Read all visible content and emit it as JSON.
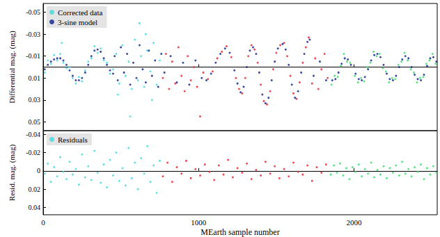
{
  "chart_data": [
    {
      "type": "scatter",
      "y_label": "Differential mag. (mag)",
      "xlim": [
        0,
        2535
      ],
      "xticks": [
        0,
        1000,
        2000
      ],
      "ylim": [
        0.058,
        -0.058
      ],
      "yticks": [
        -0.05,
        -0.03,
        -0.01,
        0.01,
        0.03,
        0.05
      ],
      "grid": false,
      "legend": "upper left",
      "tick_labels": "y",
      "marker": "circle",
      "series": [
        {
          "name": "Corrected data",
          "color": "#3fd9e0",
          "x": [
            10,
            30,
            50,
            70,
            90,
            110,
            120,
            130,
            150,
            170,
            190,
            210,
            230,
            250,
            270,
            290,
            310,
            330,
            350,
            370,
            390,
            410,
            430,
            450,
            470,
            480,
            490,
            510,
            530,
            550,
            560,
            570,
            590,
            610,
            620,
            630,
            650,
            660,
            670,
            690,
            700,
            710,
            730,
            750
          ],
          "values": [
            0.005,
            -0.006,
            -0.003,
            -0.011,
            -0.006,
            -0.012,
            -0.022,
            -0.004,
            0.001,
            0,
            0.01,
            0.015,
            0.009,
            0.013,
            0.003,
            -0.005,
            -0.008,
            -0.019,
            -0.013,
            -0.017,
            -0.006,
            -0.004,
            0.006,
            0.002,
            -0.012,
            0.025,
            0.015,
            -0.02,
            0.008,
            -0.005,
            0.045,
            0.02,
            -0.025,
            0.012,
            -0.04,
            -0.01,
            0.018,
            -0.03,
            -0.015,
            0.004,
            0.03,
            -0.022,
            0.016,
            -0.006
          ]
        },
        {
          "color": "#e8232a",
          "x": [
            770,
            790,
            810,
            830,
            850,
            870,
            890,
            910,
            930,
            950,
            970,
            990,
            1010,
            1030,
            1060,
            1090,
            1120,
            1150,
            1180,
            1210,
            1240,
            1260,
            1280,
            1300,
            1320,
            1340,
            1360,
            1380,
            1400,
            1420,
            1440,
            1460,
            1480,
            1500,
            1525,
            1550,
            1570,
            1590,
            1610,
            1630,
            1650,
            1670,
            1690,
            1708,
            1730,
            1750,
            1770,
            1790,
            1810,
            1830
          ],
          "values": [
            0.01,
            -0.012,
            0.02,
            -0.005,
            0.015,
            -0.018,
            0.008,
            0.022,
            -0.01,
            0.012,
            0,
            0.018,
            0.045,
            0.005,
            0.011,
            0.004,
            -0.008,
            -0.014,
            -0.019,
            -0.009,
            0.01,
            0.02,
            0.024,
            0.01,
            -0.01,
            -0.02,
            -0.016,
            -0.004,
            0.016,
            0.031,
            0.034,
            0.022,
            0.002,
            -0.013,
            -0.02,
            -0.022,
            -0.01,
            0.008,
            0.024,
            0.029,
            0.014,
            -0.004,
            -0.018,
            -0.027,
            0.015,
            -0.008,
            0.02,
            0.002,
            -0.012,
            0.01
          ]
        },
        {
          "color": "#33dd66",
          "x": [
            1855,
            1875,
            1895,
            1915,
            1935,
            1955,
            1975,
            2005,
            2025,
            2045,
            2065,
            2085,
            2105,
            2125,
            2145,
            2165,
            2185,
            2205,
            2225,
            2245,
            2265,
            2285,
            2305,
            2325,
            2345,
            2365,
            2385,
            2405,
            2425,
            2445,
            2465,
            2485,
            2505,
            2525
          ],
          "values": [
            0.016,
            0.008,
            0.009,
            -0.001,
            -0.012,
            -0.005,
            -0.004,
            0.008,
            0.014,
            0.01,
            0.013,
            0,
            -0.004,
            -0.014,
            -0.01,
            -0.012,
            0.001,
            0.004,
            0.014,
            0.01,
            0.011,
            -0.002,
            -0.005,
            -0.013,
            -0.006,
            0.002,
            0.005,
            0.014,
            0.01,
            0.009,
            -0.003,
            -0.006,
            -0.012,
            -0.003
          ]
        },
        {
          "name": "3-sine model",
          "color": "#0d1f8f",
          "x": [
            10,
            30,
            50,
            70,
            90,
            110,
            130,
            150,
            170,
            190,
            210,
            230,
            250,
            270,
            290,
            310,
            330,
            350,
            370,
            390,
            410,
            430,
            450,
            460,
            480,
            500,
            520,
            540,
            560,
            580,
            600,
            620,
            640,
            660,
            680,
            700,
            720,
            740,
            760,
            780,
            820,
            860,
            900,
            940,
            980,
            1020,
            1050,
            1080,
            1110,
            1140,
            1170,
            1200,
            1230,
            1250,
            1270,
            1290,
            1310,
            1330,
            1350,
            1370,
            1390,
            1410,
            1430,
            1450,
            1470,
            1490,
            1510,
            1540,
            1560,
            1580,
            1600,
            1620,
            1640,
            1660,
            1680,
            1700,
            1715,
            1740,
            1780,
            1820,
            1860,
            1880,
            1900,
            1920,
            1940,
            1960,
            1980,
            2010,
            2030,
            2050,
            2070,
            2090,
            2110,
            2130,
            2150,
            2170,
            2190,
            2210,
            2230,
            2250,
            2270,
            2290,
            2310,
            2330,
            2350,
            2370,
            2390,
            2410,
            2430,
            2450,
            2470,
            2490,
            2510,
            2530
          ],
          "values": [
            0.002,
            -0.002,
            -0.005,
            -0.007,
            -0.008,
            -0.008,
            -0.006,
            -0.002,
            0.003,
            0.008,
            0.012,
            0.012,
            0.01,
            0.005,
            -0.002,
            -0.01,
            -0.015,
            -0.016,
            -0.014,
            -0.008,
            -0.002,
            0.003,
            0.006,
            -0.01,
            0.012,
            -0.018,
            0.005,
            -0.012,
            0.016,
            -0.004,
            0.01,
            -0.02,
            0.002,
            0.014,
            -0.015,
            0.008,
            -0.006,
            0.018,
            -0.012,
            0.005,
            -0.01,
            0.014,
            -0.004,
            0.016,
            -0.006,
            0.01,
            0.012,
            0.006,
            -0.004,
            -0.012,
            -0.017,
            -0.013,
            0.003,
            0.015,
            0.023,
            0.018,
            0,
            -0.015,
            -0.018,
            -0.012,
            0.005,
            0.025,
            0.033,
            0.028,
            0.012,
            -0.005,
            -0.017,
            -0.021,
            -0.016,
            -0.002,
            0.016,
            0.028,
            0.022,
            0.005,
            -0.012,
            -0.023,
            -0.025,
            0.008,
            -0.005,
            0.012,
            0.012,
            0.011,
            0.005,
            -0.003,
            -0.008,
            -0.007,
            -0.002,
            0.006,
            0.011,
            0.012,
            0.009,
            0.002,
            -0.006,
            -0.011,
            -0.012,
            -0.009,
            -0.002,
            0.006,
            0.011,
            0.012,
            0.008,
            0,
            -0.007,
            -0.01,
            -0.008,
            0,
            0.007,
            0.011,
            0.012,
            0.007,
            -0.001,
            -0.008,
            -0.009,
            -0.005
          ]
        }
      ]
    },
    {
      "type": "scatter",
      "x_label": "MEarth sample number",
      "y_label": "Resid. mag. (mag)",
      "xlim": [
        0,
        2535
      ],
      "xticks": [
        0,
        1000,
        2000
      ],
      "ylim": [
        0.048,
        -0.044
      ],
      "yticks": [
        -0.04,
        -0.02,
        0,
        0.02,
        0.04
      ],
      "grid": false,
      "legend": "upper left",
      "marker": "circle",
      "series": [
        {
          "name": "Residuals",
          "color": "#3fd9e0",
          "x": [
            10,
            30,
            50,
            70,
            90,
            110,
            130,
            150,
            170,
            190,
            210,
            230,
            250,
            270,
            290,
            310,
            330,
            350,
            370,
            390,
            410,
            430,
            450,
            470,
            490,
            510,
            530,
            550,
            570,
            590,
            610,
            630,
            650,
            670,
            690,
            710,
            730,
            750
          ],
          "values": [
            0.003,
            -0.008,
            0.012,
            -0.004,
            0.006,
            -0.015,
            0.001,
            0.009,
            -0.01,
            0.004,
            -0.002,
            0.015,
            -0.018,
            0.007,
            -0.005,
            0.01,
            -0.022,
            0.002,
            0.013,
            -0.007,
            0.018,
            -0.012,
            0.005,
            -0.02,
            0.011,
            -0.003,
            0.016,
            -0.025,
            0.008,
            -0.009,
            0.02,
            -0.014,
            0.003,
            -0.027,
            0.012,
            -0.006,
            0.024,
            -0.011
          ]
        },
        {
          "color": "#e8232a",
          "x": [
            770,
            800,
            830,
            860,
            890,
            920,
            950,
            980,
            1010,
            1040,
            1070,
            1100,
            1130,
            1160,
            1190,
            1220,
            1250,
            1280,
            1310,
            1340,
            1370,
            1400,
            1430,
            1460,
            1490,
            1520,
            1550,
            1580,
            1610,
            1640,
            1670,
            1700,
            1730,
            1760,
            1790,
            1820
          ],
          "values": [
            0.006,
            -0.009,
            0.012,
            -0.004,
            0.003,
            -0.011,
            0.008,
            -0.002,
            0.005,
            -0.007,
            0.001,
            0.01,
            -0.006,
            0.004,
            -0.012,
            0.007,
            -0.003,
            0.002,
            -0.008,
            0.009,
            -0.001,
            0.005,
            -0.01,
            0.003,
            -0.005,
            0.008,
            -0.002,
            0.006,
            -0.009,
            0.001,
            0.004,
            -0.006,
            0.011,
            -0.004,
            0.002,
            -0.007
          ]
        },
        {
          "color": "#33dd66",
          "x": [
            1850,
            1870,
            1890,
            1910,
            1930,
            1950,
            1970,
            1990,
            2010,
            2030,
            2050,
            2070,
            2090,
            2110,
            2130,
            2150,
            2170,
            2190,
            2210,
            2230,
            2250,
            2270,
            2290,
            2310,
            2330,
            2350,
            2370,
            2390,
            2410,
            2430,
            2450,
            2470,
            2490,
            2510,
            2530
          ],
          "values": [
            0.004,
            -0.006,
            0.002,
            -0.008,
            0.005,
            -0.003,
            0.009,
            -0.004,
            0.001,
            -0.007,
            0.006,
            -0.002,
            0.003,
            -0.009,
            0.007,
            -0.001,
            0.004,
            -0.005,
            0.008,
            -0.003,
            0.002,
            -0.006,
            0.005,
            -0.01,
            0.003,
            -0.002,
            0.006,
            -0.004,
            0.001,
            -0.007,
            0.009,
            -0.003,
            0.004,
            -0.005,
            0.002
          ]
        }
      ]
    }
  ]
}
